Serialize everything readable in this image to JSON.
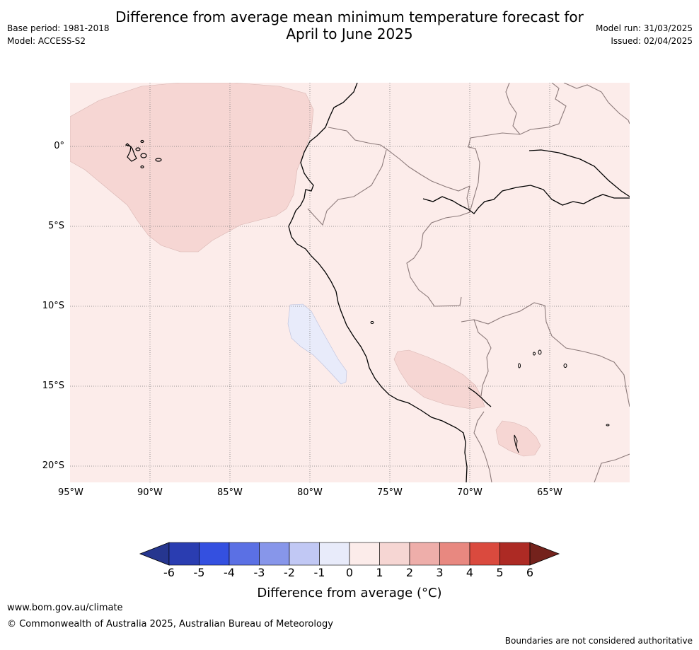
{
  "title_line1": "Difference from average mean minimum temperature forecast for",
  "title_line2": "April to June 2025",
  "meta_left": [
    "Base period: 1981-2018",
    "Model: ACCESS-S2"
  ],
  "meta_right": [
    "Model run: 31/03/2025",
    "Issued: 02/04/2025"
  ],
  "map": {
    "lon_ticks": [
      "95°W",
      "90°W",
      "85°W",
      "80°W",
      "75°W",
      "70°W",
      "65°W"
    ],
    "lat_ticks": [
      "0°",
      "5°S",
      "10°S",
      "15°S",
      "20°S"
    ],
    "extent": {
      "lon": [
        -95,
        -60
      ],
      "lat": [
        -21,
        4
      ]
    },
    "background_category": "0 to 1",
    "colors": {
      "background": "#fcecea",
      "anomaly_1_2": "#f6d6d3",
      "anomaly_neg1_0": "#e8ebfa",
      "coast": "#000000",
      "border": "#8c7a7a",
      "grid": "#7a7a7a"
    }
  },
  "colorbar": {
    "ticks": [
      "-6",
      "-5",
      "-4",
      "-3",
      "-2",
      "-1",
      "0",
      "1",
      "2",
      "3",
      "4",
      "5",
      "6"
    ],
    "colors": [
      "#26368f",
      "#2a3db1",
      "#3450e0",
      "#5b70e4",
      "#8796ea",
      "#c1c8f4",
      "#e8ebfa",
      "#fcecea",
      "#f6d6d3",
      "#eeaeaa",
      "#e88880",
      "#da4a3e",
      "#ad2a24",
      "#74221c"
    ],
    "label": "Difference from average (°C)"
  },
  "footer": {
    "url": "www.bom.gov.au/climate",
    "copyright": "© Commonwealth of Australia 2025, Australian Bureau of Meteorology",
    "disclaimer": "Boundaries are not considered authoritative"
  }
}
